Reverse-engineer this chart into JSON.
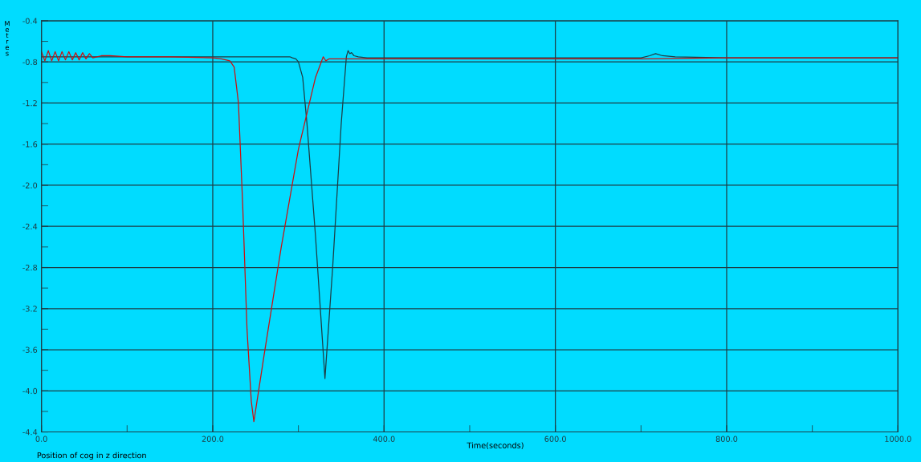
{
  "chart_data": {
    "type": "line",
    "xlabel": "Time(seconds)",
    "ylabel": "Metres",
    "annotations": [
      "Position of cog in z direction"
    ],
    "xlim": [
      0,
      1000
    ],
    "ylim": [
      -4.4,
      -0.4
    ],
    "xticks": [
      {
        "value": 0,
        "label": "0.0"
      },
      {
        "value": 100,
        "label": null
      },
      {
        "value": 200,
        "label": "200.0"
      },
      {
        "value": 300,
        "label": null
      },
      {
        "value": 400,
        "label": "400.0"
      },
      {
        "value": 500,
        "label": null
      },
      {
        "value": 600,
        "label": "600.0"
      },
      {
        "value": 700,
        "label": null
      },
      {
        "value": 800,
        "label": "800.0"
      },
      {
        "value": 900,
        "label": null
      },
      {
        "value": 1000,
        "label": "1000.0"
      }
    ],
    "yticks": [
      -4.4,
      {
        "value": -4.2,
        "label": null
      },
      {
        "value": -4.0,
        "label": "-4.0"
      },
      {
        "value": -3.8,
        "label": null
      },
      -3.6,
      {
        "value": -3.4,
        "label": null
      },
      -3.2,
      {
        "value": -3.0,
        "label": null
      },
      -2.8,
      {
        "value": -2.6,
        "label": null
      },
      -2.4,
      {
        "value": -2.2,
        "label": null
      },
      {
        "value": -2.0,
        "label": "-2.0"
      },
      {
        "value": -1.8,
        "label": null
      },
      -1.6,
      {
        "value": -1.4,
        "label": null
      },
      -1.2,
      {
        "value": -1.0,
        "label": null
      },
      -0.8,
      {
        "value": -0.6,
        "label": null
      },
      -0.4
    ],
    "grid": true,
    "line_style": "solid",
    "marker": "none",
    "series": [
      {
        "color": "#1e3c44",
        "x": [
          0,
          50,
          100,
          150,
          200,
          250,
          280,
          290,
          293,
          297,
          300,
          305,
          310,
          320,
          331,
          340,
          350,
          356,
          358,
          360,
          362,
          365,
          370,
          380,
          400,
          500,
          600,
          700,
          710,
          717,
          725,
          740,
          800,
          900,
          1000
        ],
        "values": [
          -0.75,
          -0.75,
          -0.75,
          -0.75,
          -0.75,
          -0.75,
          -0.75,
          -0.75,
          -0.76,
          -0.77,
          -0.8,
          -0.95,
          -1.4,
          -2.5,
          -3.88,
          -2.8,
          -1.4,
          -0.75,
          -0.69,
          -0.72,
          -0.71,
          -0.74,
          -0.75,
          -0.76,
          -0.76,
          -0.76,
          -0.76,
          -0.76,
          -0.74,
          -0.72,
          -0.74,
          -0.75,
          -0.76,
          -0.76,
          -0.76
        ]
      },
      {
        "color": "#cc1010",
        "x": [
          0,
          4,
          8,
          12,
          16,
          20,
          24,
          28,
          32,
          36,
          40,
          44,
          48,
          52,
          56,
          60,
          70,
          80,
          100,
          150,
          200,
          210,
          220,
          225,
          230,
          235,
          240,
          245,
          248,
          260,
          280,
          300,
          320,
          329,
          332,
          336,
          340,
          400,
          500,
          600,
          700,
          800,
          900,
          1000
        ],
        "values": [
          -0.7,
          -0.79,
          -0.69,
          -0.79,
          -0.7,
          -0.79,
          -0.7,
          -0.78,
          -0.7,
          -0.78,
          -0.71,
          -0.78,
          -0.71,
          -0.77,
          -0.72,
          -0.76,
          -0.74,
          -0.74,
          -0.75,
          -0.75,
          -0.76,
          -0.77,
          -0.79,
          -0.85,
          -1.2,
          -2.2,
          -3.4,
          -4.1,
          -4.3,
          -3.65,
          -2.6,
          -1.65,
          -0.95,
          -0.75,
          -0.79,
          -0.77,
          -0.77,
          -0.77,
          -0.77,
          -0.77,
          -0.77,
          -0.76,
          -0.76,
          -0.76
        ]
      }
    ]
  }
}
